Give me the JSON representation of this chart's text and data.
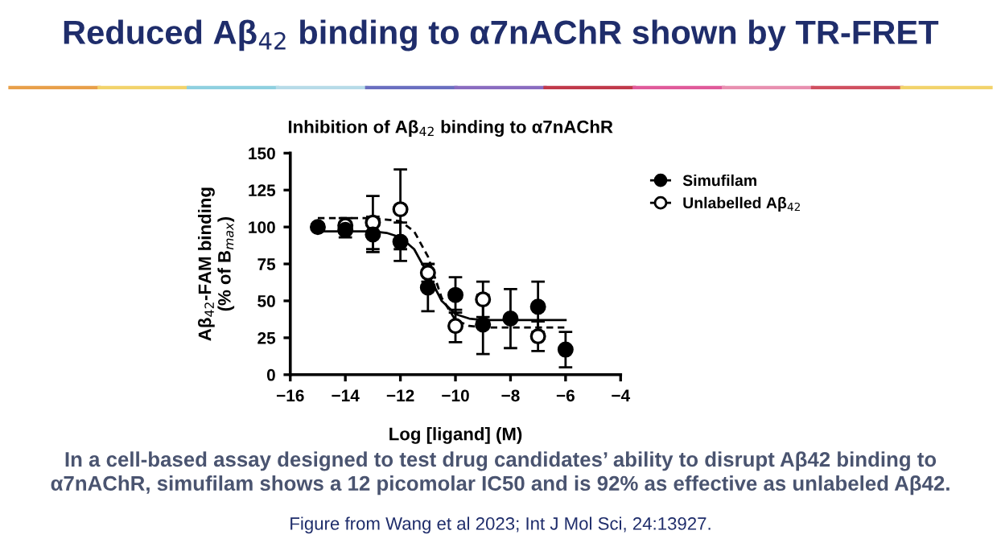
{
  "chart_data": {
    "type": "scatter",
    "title": "Reduced Aβ$_{42}$ binding to α7nAChR shown by TR-FRET",
    "subtitle": "Inhibition of Aβ$_{42}$ binding to α7nAChR",
    "xlabel": "Log [ligand] (M)",
    "ylabel": "Aβ$_{42}$-FAM binding\n(% of B$_{max}$)",
    "annotations": [
      "In a cell-based assay designed to test drug candidates’ ability to disrupt Aβ42 binding to\nα7nAChR, simufilam shows a 12 picomolar IC50 and is 92% as effective as unlabeled Aβ42.",
      "Figure from Wang et al 2023; Int J Mol Sci, 24:13927."
    ],
    "xlim": [
      -16,
      -4
    ],
    "xticks": [
      {
        "value": -16,
        "label": "−16"
      },
      {
        "value": -14,
        "label": "−14"
      },
      {
        "value": -12,
        "label": "−12"
      },
      {
        "value": -10,
        "label": "−10"
      },
      {
        "value": -8,
        "label": "−8"
      },
      {
        "value": -6,
        "label": "−6"
      },
      {
        "value": -4,
        "label": "−4"
      }
    ],
    "ylim": [
      0,
      150
    ],
    "yticks": [
      0,
      25,
      50,
      75,
      100,
      125,
      150
    ],
    "grid": false,
    "legend": "right",
    "series": [
      {
        "name": "Simufilam",
        "marker": "circle",
        "color": "#000000",
        "x": [
          -15,
          -14,
          -13,
          -12,
          -11,
          -10,
          -9,
          -8,
          -7,
          -6
        ],
        "values": [
          100,
          98,
          95,
          90,
          59,
          54,
          34,
          38,
          46,
          17
        ],
        "errors": [
          2,
          5,
          12,
          13,
          16,
          12,
          20,
          20,
          17,
          12
        ]
      },
      {
        "name": "Unlabelled Aβ$_{42}$",
        "marker": "circle",
        "color": "#000000",
        "x": [
          -14,
          -13,
          -12,
          -11,
          -10,
          -9,
          -8,
          -7
        ],
        "values": [
          101,
          103,
          112,
          69,
          33,
          51,
          null,
          26
        ],
        "errors": [
          5,
          18,
          27,
          6,
          11,
          12,
          null,
          10
        ]
      },
      {
        "type": "line",
        "marker": "none",
        "line_style": "solid",
        "color": "#000000",
        "x": [
          -15,
          -13,
          -12.5,
          -12,
          -11.5,
          -11,
          -10.5,
          -10,
          -9.5,
          -9,
          -6
        ],
        "values": [
          97,
          97,
          96,
          93,
          85,
          68,
          50,
          41,
          38,
          37,
          37
        ]
      },
      {
        "type": "line",
        "marker": "none",
        "line_style": "dashed",
        "color": "#000000",
        "x": [
          -15,
          -13,
          -12,
          -11.5,
          -11,
          -10.5,
          -10,
          -9.5,
          -9,
          -6
        ],
        "values": [
          106,
          106,
          104,
          97,
          80,
          52,
          37,
          33,
          32,
          32
        ]
      }
    ]
  }
}
